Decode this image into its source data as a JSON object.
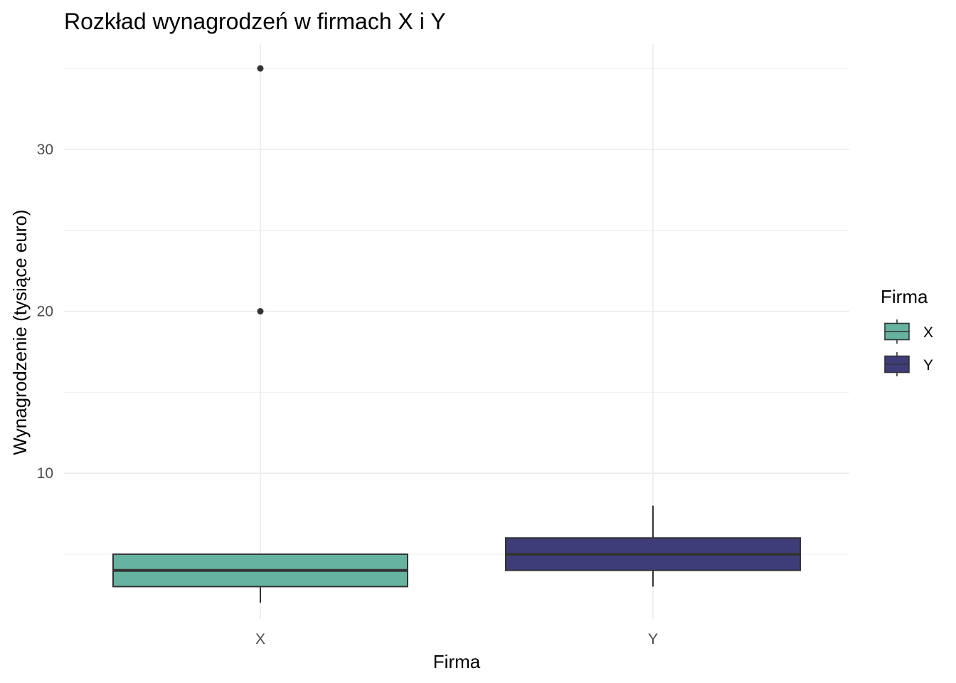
{
  "chart_data": {
    "type": "boxplot",
    "title": "Rozkład wynagrodzeń w firmach X i Y",
    "xlabel": "Firma",
    "ylabel": "Wynagrodzenie (tysiące euro)",
    "categories": [
      "X",
      "Y"
    ],
    "y_ticks": [
      10,
      20,
      30
    ],
    "ylim": [
      1.0,
      36.5
    ],
    "grid": true,
    "legend": {
      "title": "Firma",
      "position": "right",
      "entries": [
        {
          "label": "X",
          "color": "#66b3a1"
        },
        {
          "label": "Y",
          "color": "#3e3d7a"
        }
      ]
    },
    "series": [
      {
        "category": "X",
        "whisker_low": 2,
        "q1": 3,
        "median": 4,
        "q3": 5,
        "whisker_high": 5,
        "outliers": [
          20,
          35
        ],
        "color": "#66b3a1"
      },
      {
        "category": "Y",
        "whisker_low": 3,
        "q1": 4,
        "median": 5,
        "q3": 6,
        "whisker_high": 8,
        "outliers": [],
        "color": "#3e3d7a"
      }
    ]
  }
}
